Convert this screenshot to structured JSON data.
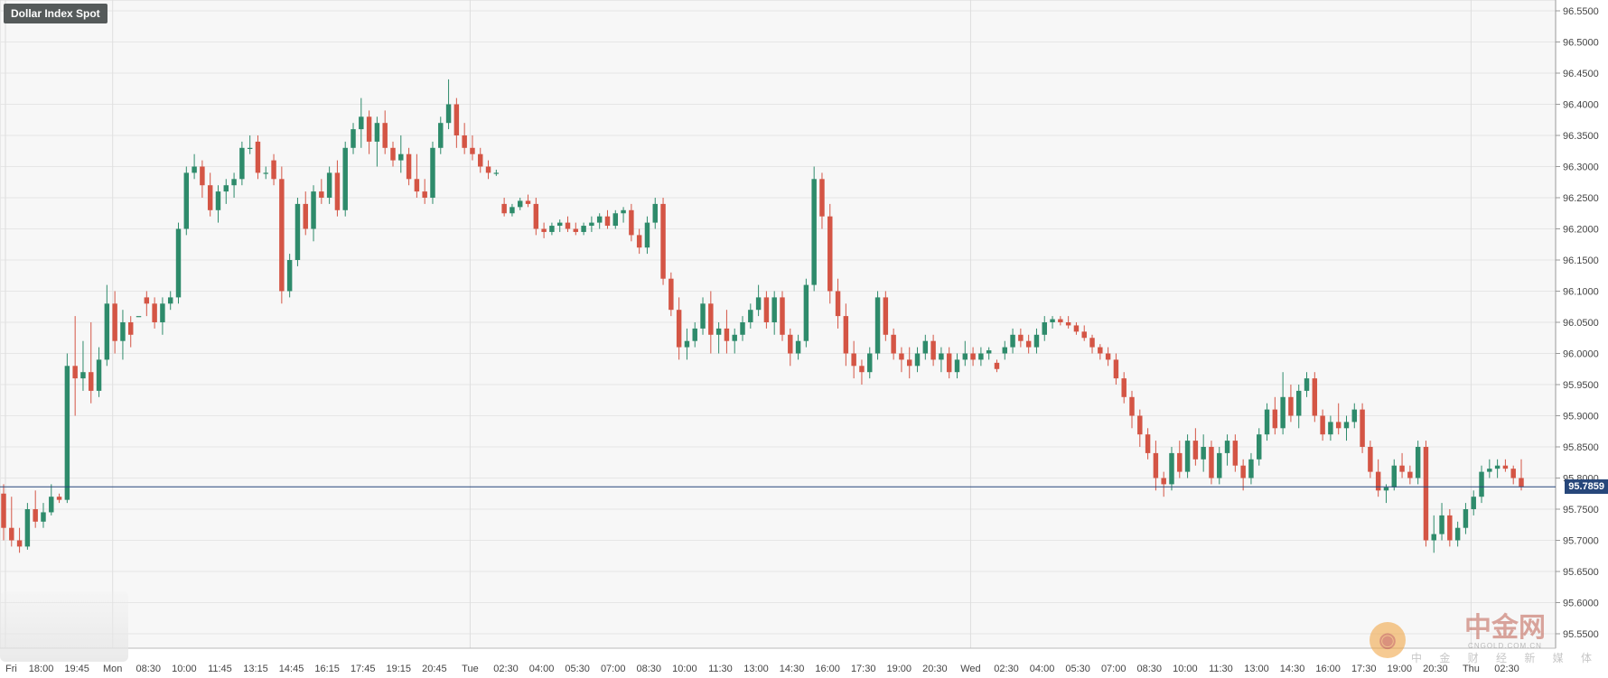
{
  "title": "Dollar Index Spot",
  "current_price": "95.7859",
  "watermark": {
    "brand": "中金网",
    "site": "CNGOLD.COM.CN",
    "tagline": "中 金 财 经 新 媒 体"
  },
  "colors": {
    "up": "#2e8b6b",
    "down": "#d45545",
    "grid": "#e6e6e6",
    "bg": "#f7f7f7",
    "price_line": "#27477a"
  },
  "chart_data": {
    "type": "candlestick",
    "title": "Dollar Index Spot",
    "ylim": [
      95.55,
      96.55
    ],
    "y_ticks": [
      "96.5500",
      "96.5000",
      "96.4500",
      "96.4000",
      "96.3500",
      "96.3000",
      "96.2500",
      "96.2000",
      "96.1500",
      "96.1000",
      "96.0500",
      "96.0000",
      "95.9500",
      "95.9000",
      "95.8500",
      "95.8000",
      "95.7500",
      "95.7000",
      "95.6500",
      "95.6000",
      "95.5500"
    ],
    "x_ticks": [
      "Fri",
      "18:00",
      "19:45",
      "Mon",
      "08:30",
      "10:00",
      "11:45",
      "13:15",
      "14:45",
      "16:15",
      "17:45",
      "19:15",
      "20:45",
      "Tue",
      "02:30",
      "04:00",
      "05:30",
      "07:00",
      "08:30",
      "10:00",
      "11:30",
      "13:00",
      "14:30",
      "16:00",
      "17:30",
      "19:00",
      "20:30",
      "Wed",
      "02:30",
      "04:00",
      "05:30",
      "07:00",
      "08:30",
      "10:00",
      "11:30",
      "13:00",
      "14:30",
      "16:00",
      "17:30",
      "19:00",
      "20:30",
      "Thu",
      "02:30"
    ],
    "current_price": 95.7859,
    "candles": [
      [
        95.775,
        95.79,
        95.7,
        95.72
      ],
      [
        95.72,
        95.77,
        95.69,
        95.7
      ],
      [
        95.7,
        95.72,
        95.68,
        95.69
      ],
      [
        95.69,
        95.76,
        95.685,
        95.75
      ],
      [
        95.75,
        95.78,
        95.72,
        95.73
      ],
      [
        95.73,
        95.76,
        95.72,
        95.745
      ],
      [
        95.745,
        95.79,
        95.74,
        95.77
      ],
      [
        95.77,
        95.775,
        95.76,
        95.765
      ],
      [
        95.765,
        96.0,
        95.76,
        95.98
      ],
      [
        95.98,
        96.06,
        95.9,
        95.96
      ],
      [
        95.96,
        96.02,
        95.94,
        95.97
      ],
      [
        95.97,
        96.05,
        95.92,
        95.94
      ],
      [
        95.94,
        96.01,
        95.93,
        95.99
      ],
      [
        95.99,
        96.11,
        95.98,
        96.08
      ],
      [
        96.08,
        96.1,
        96.0,
        96.02
      ],
      [
        96.02,
        96.07,
        95.99,
        96.05
      ],
      [
        96.05,
        96.06,
        96.01,
        96.03
      ],
      [
        96.06,
        96.06,
        96.06,
        96.06
      ],
      [
        96.09,
        96.1,
        96.06,
        96.08
      ],
      [
        96.08,
        96.09,
        96.04,
        96.05
      ],
      [
        96.05,
        96.09,
        96.03,
        96.08
      ],
      [
        96.08,
        96.1,
        96.07,
        96.09
      ],
      [
        96.09,
        96.21,
        96.08,
        96.2
      ],
      [
        96.2,
        96.3,
        96.19,
        96.29
      ],
      [
        96.29,
        96.32,
        96.28,
        96.3
      ],
      [
        96.3,
        96.31,
        96.25,
        96.27
      ],
      [
        96.27,
        96.29,
        96.22,
        96.23
      ],
      [
        96.23,
        96.27,
        96.21,
        96.26
      ],
      [
        96.26,
        96.28,
        96.24,
        96.27
      ],
      [
        96.27,
        96.29,
        96.25,
        96.28
      ],
      [
        96.28,
        96.34,
        96.27,
        96.33
      ],
      [
        96.33,
        96.35,
        96.32,
        96.33
      ],
      [
        96.34,
        96.35,
        96.28,
        96.29
      ],
      [
        96.29,
        96.3,
        96.28,
        96.29
      ],
      [
        96.31,
        96.32,
        96.27,
        96.28
      ],
      [
        96.28,
        96.3,
        96.08,
        96.1
      ],
      [
        96.1,
        96.16,
        96.09,
        96.15
      ],
      [
        96.15,
        96.25,
        96.14,
        96.24
      ],
      [
        96.24,
        96.26,
        96.19,
        96.2
      ],
      [
        96.2,
        96.27,
        96.18,
        96.26
      ],
      [
        96.26,
        96.28,
        96.24,
        96.25
      ],
      [
        96.25,
        96.3,
        96.24,
        96.29
      ],
      [
        96.29,
        96.31,
        96.22,
        96.23
      ],
      [
        96.23,
        96.34,
        96.22,
        96.33
      ],
      [
        96.33,
        96.37,
        96.32,
        96.36
      ],
      [
        96.36,
        96.41,
        96.33,
        96.38
      ],
      [
        96.38,
        96.39,
        96.32,
        96.34
      ],
      [
        96.34,
        96.38,
        96.3,
        96.37
      ],
      [
        96.37,
        96.39,
        96.32,
        96.33
      ],
      [
        96.33,
        96.34,
        96.3,
        96.31
      ],
      [
        96.31,
        96.35,
        96.29,
        96.32
      ],
      [
        96.32,
        96.33,
        96.27,
        96.28
      ],
      [
        96.28,
        96.32,
        96.25,
        96.26
      ],
      [
        96.26,
        96.28,
        96.24,
        96.25
      ],
      [
        96.25,
        96.34,
        96.24,
        96.33
      ],
      [
        96.33,
        96.38,
        96.32,
        96.37
      ],
      [
        96.37,
        96.44,
        96.36,
        96.4
      ],
      [
        96.4,
        96.41,
        96.33,
        96.35
      ],
      [
        96.35,
        96.37,
        96.32,
        96.33
      ],
      [
        96.33,
        96.35,
        96.31,
        96.32
      ],
      [
        96.32,
        96.33,
        96.29,
        96.3
      ],
      [
        96.3,
        96.31,
        96.28,
        96.29
      ],
      [
        96.29,
        96.295,
        96.285,
        96.29
      ],
      [
        96.24,
        96.25,
        96.22,
        96.225
      ],
      [
        96.225,
        96.24,
        96.22,
        96.235
      ],
      [
        96.235,
        96.25,
        96.23,
        96.245
      ],
      [
        96.245,
        96.255,
        96.235,
        96.24
      ],
      [
        96.24,
        96.25,
        96.19,
        96.2
      ],
      [
        96.2,
        96.21,
        96.185,
        96.195
      ],
      [
        96.195,
        96.21,
        96.19,
        96.205
      ],
      [
        96.205,
        96.215,
        96.195,
        96.21
      ],
      [
        96.21,
        96.22,
        96.195,
        96.2
      ],
      [
        96.2,
        96.21,
        96.19,
        96.195
      ],
      [
        96.195,
        96.21,
        96.19,
        96.205
      ],
      [
        96.205,
        96.22,
        96.195,
        96.21
      ],
      [
        96.21,
        96.225,
        96.2,
        96.22
      ],
      [
        96.22,
        96.23,
        96.2,
        96.205
      ],
      [
        96.205,
        96.23,
        96.2,
        96.225
      ],
      [
        96.225,
        96.235,
        96.21,
        96.23
      ],
      [
        96.23,
        96.24,
        96.18,
        96.19
      ],
      [
        96.19,
        96.2,
        96.16,
        96.17
      ],
      [
        96.17,
        96.22,
        96.16,
        96.21
      ],
      [
        96.21,
        96.25,
        96.2,
        96.24
      ],
      [
        96.24,
        96.25,
        96.11,
        96.12
      ],
      [
        96.12,
        96.13,
        96.06,
        96.07
      ],
      [
        96.07,
        96.09,
        95.99,
        96.01
      ],
      [
        96.01,
        96.04,
        95.99,
        96.02
      ],
      [
        96.02,
        96.05,
        96.01,
        96.04
      ],
      [
        96.04,
        96.09,
        96.03,
        96.08
      ],
      [
        96.08,
        96.1,
        96.0,
        96.03
      ],
      [
        96.03,
        96.05,
        96.0,
        96.04
      ],
      [
        96.04,
        96.07,
        96.0,
        96.02
      ],
      [
        96.02,
        96.04,
        96.0,
        96.03
      ],
      [
        96.03,
        96.06,
        96.02,
        96.05
      ],
      [
        96.05,
        96.08,
        96.04,
        96.07
      ],
      [
        96.07,
        96.11,
        96.06,
        96.09
      ],
      [
        96.09,
        96.1,
        96.04,
        96.05
      ],
      [
        96.05,
        96.1,
        96.03,
        96.09
      ],
      [
        96.09,
        96.1,
        96.02,
        96.03
      ],
      [
        96.03,
        96.04,
        95.98,
        96.0
      ],
      [
        96.0,
        96.03,
        95.99,
        96.02
      ],
      [
        96.02,
        96.12,
        96.01,
        96.11
      ],
      [
        96.11,
        96.3,
        96.1,
        96.28
      ],
      [
        96.28,
        96.29,
        96.2,
        96.22
      ],
      [
        96.22,
        96.24,
        96.08,
        96.1
      ],
      [
        96.1,
        96.12,
        96.04,
        96.06
      ],
      [
        96.06,
        96.08,
        95.98,
        96.0
      ],
      [
        96.0,
        96.02,
        95.96,
        95.98
      ],
      [
        95.98,
        95.99,
        95.95,
        95.97
      ],
      [
        95.97,
        96.01,
        95.96,
        96.0
      ],
      [
        96.0,
        96.1,
        95.99,
        96.09
      ],
      [
        96.09,
        96.1,
        96.02,
        96.03
      ],
      [
        96.03,
        96.04,
        95.99,
        96.0
      ],
      [
        96.0,
        96.01,
        95.97,
        95.99
      ],
      [
        95.99,
        96.01,
        95.96,
        95.98
      ],
      [
        95.98,
        96.01,
        95.97,
        96.0
      ],
      [
        96.0,
        96.03,
        95.99,
        96.02
      ],
      [
        96.02,
        96.03,
        95.98,
        95.99
      ],
      [
        95.99,
        96.01,
        95.97,
        96.0
      ],
      [
        96.0,
        96.01,
        95.96,
        95.97
      ],
      [
        95.97,
        96.0,
        95.96,
        95.99
      ],
      [
        95.99,
        96.02,
        95.98,
        96.0
      ],
      [
        96.0,
        96.01,
        95.98,
        95.99
      ],
      [
        95.99,
        96.01,
        95.98,
        96.0
      ],
      [
        96.0,
        96.01,
        95.99,
        96.005
      ],
      [
        95.985,
        95.99,
        95.97,
        95.975
      ],
      [
        96.0,
        96.02,
        95.99,
        96.01
      ],
      [
        96.01,
        96.04,
        96.0,
        96.03
      ],
      [
        96.03,
        96.04,
        96.01,
        96.02
      ],
      [
        96.02,
        96.03,
        96.0,
        96.01
      ],
      [
        96.01,
        96.04,
        96.0,
        96.03
      ],
      [
        96.03,
        96.06,
        96.02,
        96.05
      ],
      [
        96.05,
        96.06,
        96.04,
        96.055
      ],
      [
        96.055,
        96.06,
        96.045,
        96.05
      ],
      [
        96.05,
        96.06,
        96.04,
        96.045
      ],
      [
        96.045,
        96.05,
        96.03,
        96.035
      ],
      [
        96.035,
        96.045,
        96.02,
        96.025
      ],
      [
        96.025,
        96.03,
        96.0,
        96.01
      ],
      [
        96.01,
        96.015,
        95.99,
        96.0
      ],
      [
        96.0,
        96.01,
        95.98,
        95.99
      ],
      [
        95.99,
        96.0,
        95.95,
        95.96
      ],
      [
        95.96,
        95.97,
        95.92,
        95.93
      ],
      [
        95.93,
        95.94,
        95.88,
        95.9
      ],
      [
        95.9,
        95.91,
        95.85,
        95.87
      ],
      [
        95.87,
        95.88,
        95.83,
        95.84
      ],
      [
        95.84,
        95.86,
        95.78,
        95.8
      ],
      [
        95.8,
        95.81,
        95.77,
        95.79
      ],
      [
        95.79,
        95.85,
        95.78,
        95.84
      ],
      [
        95.84,
        95.86,
        95.8,
        95.81
      ],
      [
        95.81,
        95.87,
        95.8,
        95.86
      ],
      [
        95.86,
        95.88,
        95.82,
        95.83
      ],
      [
        95.83,
        95.87,
        95.81,
        95.85
      ],
      [
        95.85,
        95.86,
        95.79,
        95.8
      ],
      [
        95.8,
        95.85,
        95.79,
        95.84
      ],
      [
        95.84,
        95.87,
        95.82,
        95.86
      ],
      [
        95.86,
        95.87,
        95.81,
        95.82
      ],
      [
        95.82,
        95.83,
        95.78,
        95.8
      ],
      [
        95.8,
        95.84,
        95.79,
        95.83
      ],
      [
        95.83,
        95.88,
        95.82,
        95.87
      ],
      [
        95.87,
        95.92,
        95.86,
        95.91
      ],
      [
        95.91,
        95.93,
        95.87,
        95.88
      ],
      [
        95.88,
        95.97,
        95.87,
        95.93
      ],
      [
        95.93,
        95.95,
        95.89,
        95.9
      ],
      [
        95.9,
        95.95,
        95.88,
        95.94
      ],
      [
        95.94,
        95.97,
        95.93,
        95.96
      ],
      [
        95.96,
        95.97,
        95.89,
        95.9
      ],
      [
        95.9,
        95.91,
        95.86,
        95.87
      ],
      [
        95.87,
        95.9,
        95.86,
        95.89
      ],
      [
        95.89,
        95.92,
        95.87,
        95.88
      ],
      [
        95.88,
        95.9,
        95.86,
        95.89
      ],
      [
        95.89,
        95.92,
        95.88,
        95.91
      ],
      [
        95.91,
        95.92,
        95.84,
        95.85
      ],
      [
        95.85,
        95.86,
        95.8,
        95.81
      ],
      [
        95.81,
        95.83,
        95.77,
        95.78
      ],
      [
        95.78,
        95.79,
        95.76,
        95.785
      ],
      [
        95.785,
        95.83,
        95.78,
        95.82
      ],
      [
        95.82,
        95.84,
        95.8,
        95.81
      ],
      [
        95.81,
        95.82,
        95.79,
        95.8
      ],
      [
        95.8,
        95.86,
        95.79,
        95.85
      ],
      [
        95.85,
        95.86,
        95.69,
        95.7
      ],
      [
        95.7,
        95.74,
        95.68,
        95.71
      ],
      [
        95.71,
        95.76,
        95.7,
        95.74
      ],
      [
        95.74,
        95.75,
        95.69,
        95.7
      ],
      [
        95.7,
        95.73,
        95.69,
        95.72
      ],
      [
        95.72,
        95.76,
        95.71,
        95.75
      ],
      [
        95.75,
        95.78,
        95.74,
        95.77
      ],
      [
        95.77,
        95.82,
        95.76,
        95.81
      ],
      [
        95.81,
        95.83,
        95.8,
        95.815
      ],
      [
        95.815,
        95.83,
        95.8,
        95.82
      ],
      [
        95.82,
        95.83,
        95.81,
        95.815
      ],
      [
        95.815,
        95.82,
        95.79,
        95.8
      ],
      [
        95.8,
        95.83,
        95.78,
        95.786
      ]
    ]
  }
}
